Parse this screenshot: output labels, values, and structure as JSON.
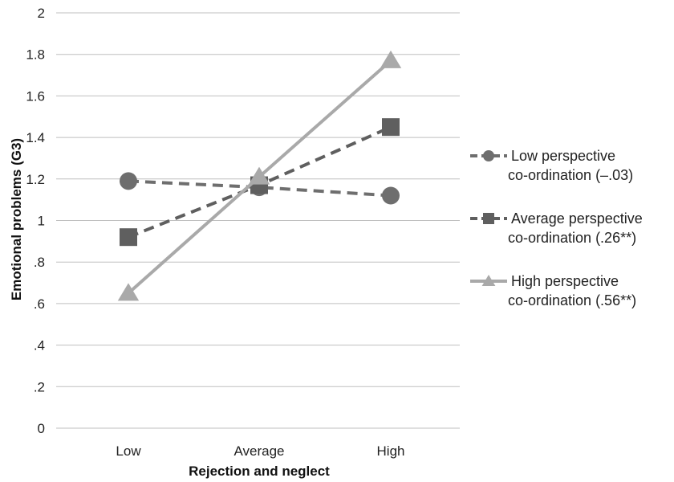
{
  "chart_data": {
    "type": "line",
    "xlabel": "Rejection and neglect",
    "ylabel": "Emotional problems (G3)",
    "categories": [
      "Low",
      "Average",
      "High"
    ],
    "ylim": [
      0,
      2
    ],
    "yticks": [
      "0",
      ".2",
      ".4",
      ".6",
      ".8",
      "1",
      "1.2",
      "1.4",
      "1.6",
      "1.8",
      "2"
    ],
    "grid": "horizontal",
    "legend_position": "right",
    "series": [
      {
        "name_lines": [
          "Low perspective",
          "co-ordination (–.03)"
        ],
        "values": [
          1.19,
          1.16,
          1.12
        ],
        "color": "#6e6e6e",
        "line_style": "dashed",
        "marker": "circle"
      },
      {
        "name_lines": [
          "Average perspective",
          "co-ordination (.26**)"
        ],
        "values": [
          0.92,
          1.17,
          1.45
        ],
        "color": "#5f5f5f",
        "line_style": "dashed",
        "marker": "square"
      },
      {
        "name_lines": [
          "High perspective",
          "co-ordination (.56**)"
        ],
        "values": [
          0.65,
          1.21,
          1.77
        ],
        "color": "#a9a9a9",
        "line_style": "solid",
        "marker": "triangle"
      }
    ]
  }
}
